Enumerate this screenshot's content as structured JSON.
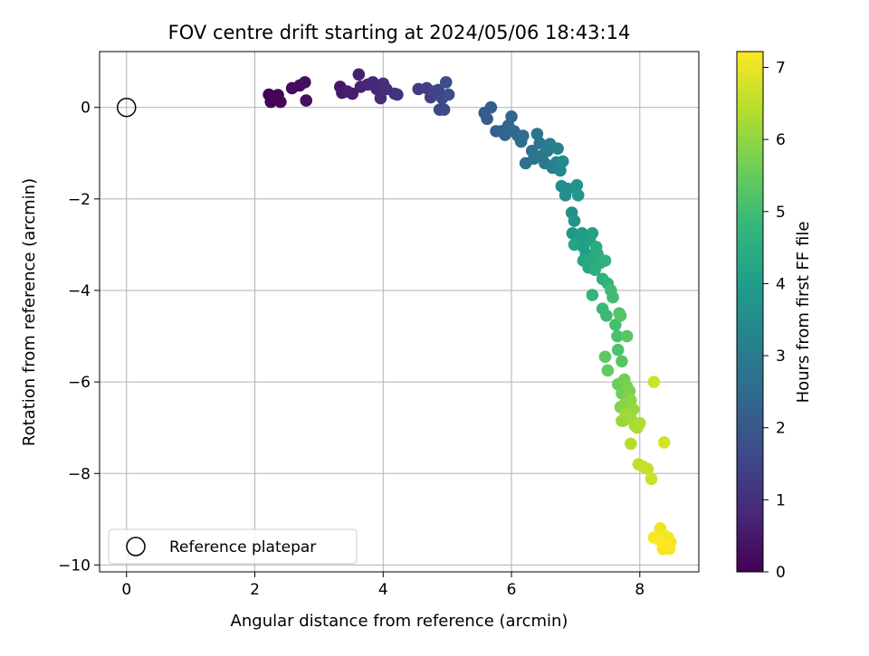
{
  "chart_data": {
    "type": "scatter",
    "title": "FOV centre drift starting at 2024/05/06 18:43:14",
    "xlabel": "Angular distance from reference (arcmin)",
    "ylabel": "Rotation from reference (arcmin)",
    "xlim": [
      -0.42,
      8.92
    ],
    "ylim": [
      -10.15,
      1.22
    ],
    "xticks": [
      0,
      2,
      4,
      6,
      8
    ],
    "yticks": [
      0,
      -2,
      -4,
      -6,
      -8,
      -10
    ],
    "xtick_labels": [
      "0",
      "2",
      "4",
      "6",
      "8"
    ],
    "ytick_labels": [
      "0",
      "−2",
      "−4",
      "−6",
      "−8",
      "−10"
    ],
    "grid": true,
    "legend": {
      "placement": "lower-left",
      "entries": [
        {
          "label": "Reference platepar",
          "marker": "open-circle",
          "x": 0,
          "y": 0
        }
      ]
    },
    "colorbar": {
      "label": "Hours from first FF file",
      "range": [
        0,
        7.22
      ],
      "ticks": [
        0,
        1,
        2,
        3,
        4,
        5,
        6,
        7
      ],
      "tick_labels": [
        "0",
        "1",
        "2",
        "3",
        "4",
        "5",
        "6",
        "7"
      ],
      "colormap": "viridis",
      "colors": [
        "#440154",
        "#482878",
        "#3e4989",
        "#31688e",
        "#26828e",
        "#1f9e89",
        "#35b779",
        "#6ece58",
        "#b5de2b",
        "#fde725"
      ]
    },
    "points": [
      [
        2.22,
        0.28,
        0.02
      ],
      [
        2.25,
        0.12,
        0.05
      ],
      [
        2.3,
        0.2,
        0.08
      ],
      [
        2.36,
        0.27,
        0.1
      ],
      [
        2.4,
        0.12,
        0.13
      ],
      [
        2.58,
        0.42,
        0.18
      ],
      [
        2.7,
        0.48,
        0.22
      ],
      [
        2.78,
        0.55,
        0.26
      ],
      [
        2.8,
        0.15,
        0.3
      ],
      [
        3.33,
        0.45,
        0.45
      ],
      [
        3.36,
        0.32,
        0.5
      ],
      [
        3.44,
        0.35,
        0.55
      ],
      [
        3.52,
        0.3,
        0.6
      ],
      [
        3.62,
        0.72,
        0.65
      ],
      [
        3.65,
        0.45,
        0.7
      ],
      [
        3.76,
        0.5,
        0.75
      ],
      [
        3.84,
        0.55,
        0.8
      ],
      [
        3.9,
        0.4,
        0.85
      ],
      [
        3.96,
        0.2,
        0.9
      ],
      [
        4.0,
        0.52,
        0.95
      ],
      [
        4.05,
        0.4,
        1.0
      ],
      [
        4.18,
        0.3,
        1.05
      ],
      [
        4.22,
        0.28,
        1.1
      ],
      [
        4.55,
        0.4,
        1.3
      ],
      [
        4.68,
        0.42,
        1.35
      ],
      [
        4.74,
        0.22,
        1.4
      ],
      [
        4.8,
        0.35,
        1.45
      ],
      [
        4.86,
        0.38,
        1.5
      ],
      [
        4.92,
        0.2,
        1.55
      ],
      [
        4.88,
        -0.05,
        1.6
      ],
      [
        4.95,
        -0.05,
        1.65
      ],
      [
        4.98,
        0.55,
        1.7
      ],
      [
        5.02,
        0.28,
        1.75
      ],
      [
        5.58,
        -0.12,
        2.05
      ],
      [
        5.62,
        -0.25,
        2.1
      ],
      [
        5.68,
        0.0,
        2.15
      ],
      [
        5.76,
        -0.52,
        2.2
      ],
      [
        5.84,
        -0.52,
        2.25
      ],
      [
        5.9,
        -0.6,
        2.3
      ],
      [
        5.95,
        -0.4,
        2.35
      ],
      [
        6.0,
        -0.2,
        2.4
      ],
      [
        6.04,
        -0.52,
        2.45
      ],
      [
        6.1,
        -0.62,
        2.5
      ],
      [
        6.15,
        -0.75,
        2.55
      ],
      [
        6.18,
        -0.62,
        2.6
      ],
      [
        6.22,
        -1.22,
        2.65
      ],
      [
        6.32,
        -0.95,
        2.7
      ],
      [
        6.35,
        -1.12,
        2.75
      ],
      [
        6.4,
        -0.58,
        2.8
      ],
      [
        6.44,
        -0.78,
        2.85
      ],
      [
        6.48,
        -1.05,
        2.9
      ],
      [
        6.52,
        -1.22,
        2.95
      ],
      [
        6.56,
        -0.95,
        3.0
      ],
      [
        6.6,
        -0.8,
        3.05
      ],
      [
        6.64,
        -1.32,
        3.1
      ],
      [
        6.7,
        -1.2,
        3.15
      ],
      [
        6.72,
        -0.9,
        3.2
      ],
      [
        6.76,
        -1.38,
        3.4
      ],
      [
        6.8,
        -1.18,
        3.45
      ],
      [
        6.78,
        -1.72,
        3.5
      ],
      [
        6.84,
        -1.92,
        3.55
      ],
      [
        6.88,
        -1.78,
        3.6
      ],
      [
        6.94,
        -2.3,
        3.65
      ],
      [
        7.02,
        -1.7,
        3.7
      ],
      [
        6.98,
        -2.48,
        3.75
      ],
      [
        7.04,
        -1.92,
        3.8
      ],
      [
        6.95,
        -2.75,
        3.85
      ],
      [
        7.05,
        -2.85,
        3.9
      ],
      [
        7.1,
        -2.75,
        3.95
      ],
      [
        7.12,
        -3.05,
        4.0
      ],
      [
        7.16,
        -3.2,
        4.05
      ],
      [
        7.22,
        -2.9,
        4.1
      ],
      [
        7.26,
        -2.75,
        4.15
      ],
      [
        6.98,
        -3.0,
        4.2
      ],
      [
        7.12,
        -3.35,
        4.25
      ],
      [
        7.2,
        -3.5,
        4.3
      ],
      [
        7.24,
        -3.3,
        4.35
      ],
      [
        7.32,
        -3.05,
        4.4
      ],
      [
        7.34,
        -3.2,
        4.45
      ],
      [
        7.38,
        -3.4,
        4.5
      ],
      [
        7.3,
        -3.55,
        4.55
      ],
      [
        7.42,
        -3.75,
        4.6
      ],
      [
        7.46,
        -3.35,
        4.65
      ],
      [
        7.5,
        -3.85,
        4.7
      ],
      [
        7.26,
        -4.1,
        4.75
      ],
      [
        7.42,
        -4.4,
        4.85
      ],
      [
        7.48,
        -4.55,
        4.9
      ],
      [
        7.55,
        -4.0,
        4.95
      ],
      [
        7.58,
        -4.15,
        5.0
      ],
      [
        7.62,
        -4.75,
        5.05
      ],
      [
        7.65,
        -5.0,
        5.1
      ],
      [
        7.66,
        -5.3,
        5.15
      ],
      [
        7.68,
        -4.5,
        5.2
      ],
      [
        7.7,
        -4.55,
        5.25
      ],
      [
        7.72,
        -5.55,
        5.3
      ],
      [
        7.8,
        -5.0,
        5.35
      ],
      [
        7.46,
        -5.45,
        5.4
      ],
      [
        7.5,
        -5.75,
        5.45
      ],
      [
        7.66,
        -6.05,
        5.55
      ],
      [
        7.72,
        -6.25,
        5.6
      ],
      [
        7.76,
        -5.95,
        5.65
      ],
      [
        7.8,
        -6.1,
        5.7
      ],
      [
        7.84,
        -6.2,
        5.75
      ],
      [
        7.7,
        -6.55,
        5.8
      ],
      [
        7.74,
        -6.85,
        5.85
      ],
      [
        7.78,
        -6.45,
        5.9
      ],
      [
        7.86,
        -6.4,
        5.95
      ],
      [
        7.82,
        -6.7,
        6.0
      ],
      [
        7.9,
        -6.6,
        6.05
      ],
      [
        7.72,
        -6.85,
        6.1
      ],
      [
        7.78,
        -6.7,
        6.15
      ],
      [
        7.86,
        -6.8,
        6.2
      ],
      [
        7.92,
        -6.95,
        6.25
      ],
      [
        7.96,
        -7.0,
        6.3
      ],
      [
        8.0,
        -6.9,
        6.35
      ],
      [
        7.86,
        -7.35,
        6.4
      ],
      [
        7.98,
        -7.8,
        6.5
      ],
      [
        8.05,
        -7.85,
        6.55
      ],
      [
        8.12,
        -7.9,
        6.6
      ],
      [
        8.18,
        -8.12,
        6.65
      ],
      [
        8.22,
        -6.0,
        6.7
      ],
      [
        8.38,
        -7.32,
        6.75
      ],
      [
        8.32,
        -9.2,
        7.05
      ],
      [
        8.38,
        -9.35,
        7.08
      ],
      [
        8.44,
        -9.4,
        7.1
      ],
      [
        8.48,
        -9.5,
        7.12
      ],
      [
        8.36,
        -9.65,
        7.14
      ],
      [
        8.46,
        -9.65,
        7.16
      ],
      [
        8.22,
        -9.4,
        7.18
      ],
      [
        8.3,
        -9.45,
        7.2
      ],
      [
        8.4,
        -9.55,
        7.22
      ]
    ]
  }
}
